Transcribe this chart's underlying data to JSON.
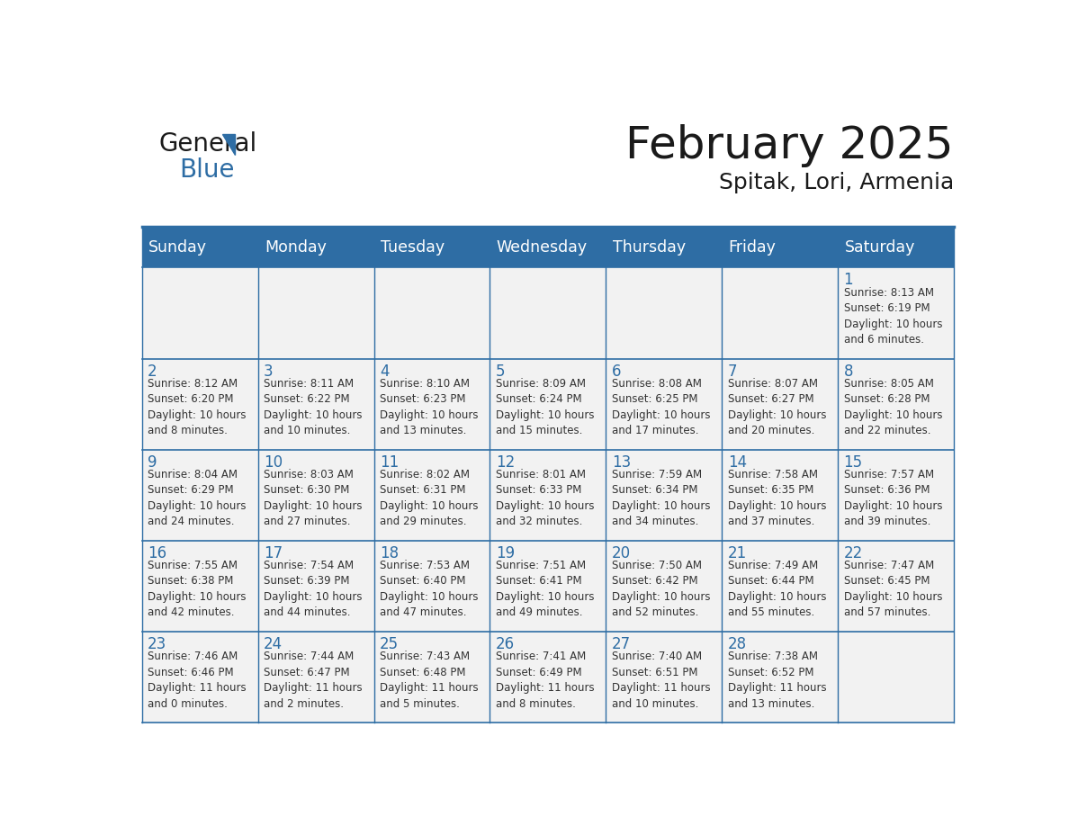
{
  "title": "February 2025",
  "subtitle": "Spitak, Lori, Armenia",
  "header_bg": "#2E6DA4",
  "header_text_color": "#FFFFFF",
  "cell_bg": "#F2F2F2",
  "border_color": "#2E6DA4",
  "day_names": [
    "Sunday",
    "Monday",
    "Tuesday",
    "Wednesday",
    "Thursday",
    "Friday",
    "Saturday"
  ],
  "title_color": "#1a1a1a",
  "subtitle_color": "#1a1a1a",
  "day_number_color": "#2E6DA4",
  "cell_text_color": "#333333",
  "weeks": [
    [
      {
        "day": "",
        "info": ""
      },
      {
        "day": "",
        "info": ""
      },
      {
        "day": "",
        "info": ""
      },
      {
        "day": "",
        "info": ""
      },
      {
        "day": "",
        "info": ""
      },
      {
        "day": "",
        "info": ""
      },
      {
        "day": "1",
        "info": "Sunrise: 8:13 AM\nSunset: 6:19 PM\nDaylight: 10 hours\nand 6 minutes."
      }
    ],
    [
      {
        "day": "2",
        "info": "Sunrise: 8:12 AM\nSunset: 6:20 PM\nDaylight: 10 hours\nand 8 minutes."
      },
      {
        "day": "3",
        "info": "Sunrise: 8:11 AM\nSunset: 6:22 PM\nDaylight: 10 hours\nand 10 minutes."
      },
      {
        "day": "4",
        "info": "Sunrise: 8:10 AM\nSunset: 6:23 PM\nDaylight: 10 hours\nand 13 minutes."
      },
      {
        "day": "5",
        "info": "Sunrise: 8:09 AM\nSunset: 6:24 PM\nDaylight: 10 hours\nand 15 minutes."
      },
      {
        "day": "6",
        "info": "Sunrise: 8:08 AM\nSunset: 6:25 PM\nDaylight: 10 hours\nand 17 minutes."
      },
      {
        "day": "7",
        "info": "Sunrise: 8:07 AM\nSunset: 6:27 PM\nDaylight: 10 hours\nand 20 minutes."
      },
      {
        "day": "8",
        "info": "Sunrise: 8:05 AM\nSunset: 6:28 PM\nDaylight: 10 hours\nand 22 minutes."
      }
    ],
    [
      {
        "day": "9",
        "info": "Sunrise: 8:04 AM\nSunset: 6:29 PM\nDaylight: 10 hours\nand 24 minutes."
      },
      {
        "day": "10",
        "info": "Sunrise: 8:03 AM\nSunset: 6:30 PM\nDaylight: 10 hours\nand 27 minutes."
      },
      {
        "day": "11",
        "info": "Sunrise: 8:02 AM\nSunset: 6:31 PM\nDaylight: 10 hours\nand 29 minutes."
      },
      {
        "day": "12",
        "info": "Sunrise: 8:01 AM\nSunset: 6:33 PM\nDaylight: 10 hours\nand 32 minutes."
      },
      {
        "day": "13",
        "info": "Sunrise: 7:59 AM\nSunset: 6:34 PM\nDaylight: 10 hours\nand 34 minutes."
      },
      {
        "day": "14",
        "info": "Sunrise: 7:58 AM\nSunset: 6:35 PM\nDaylight: 10 hours\nand 37 minutes."
      },
      {
        "day": "15",
        "info": "Sunrise: 7:57 AM\nSunset: 6:36 PM\nDaylight: 10 hours\nand 39 minutes."
      }
    ],
    [
      {
        "day": "16",
        "info": "Sunrise: 7:55 AM\nSunset: 6:38 PM\nDaylight: 10 hours\nand 42 minutes."
      },
      {
        "day": "17",
        "info": "Sunrise: 7:54 AM\nSunset: 6:39 PM\nDaylight: 10 hours\nand 44 minutes."
      },
      {
        "day": "18",
        "info": "Sunrise: 7:53 AM\nSunset: 6:40 PM\nDaylight: 10 hours\nand 47 minutes."
      },
      {
        "day": "19",
        "info": "Sunrise: 7:51 AM\nSunset: 6:41 PM\nDaylight: 10 hours\nand 49 minutes."
      },
      {
        "day": "20",
        "info": "Sunrise: 7:50 AM\nSunset: 6:42 PM\nDaylight: 10 hours\nand 52 minutes."
      },
      {
        "day": "21",
        "info": "Sunrise: 7:49 AM\nSunset: 6:44 PM\nDaylight: 10 hours\nand 55 minutes."
      },
      {
        "day": "22",
        "info": "Sunrise: 7:47 AM\nSunset: 6:45 PM\nDaylight: 10 hours\nand 57 minutes."
      }
    ],
    [
      {
        "day": "23",
        "info": "Sunrise: 7:46 AM\nSunset: 6:46 PM\nDaylight: 11 hours\nand 0 minutes."
      },
      {
        "day": "24",
        "info": "Sunrise: 7:44 AM\nSunset: 6:47 PM\nDaylight: 11 hours\nand 2 minutes."
      },
      {
        "day": "25",
        "info": "Sunrise: 7:43 AM\nSunset: 6:48 PM\nDaylight: 11 hours\nand 5 minutes."
      },
      {
        "day": "26",
        "info": "Sunrise: 7:41 AM\nSunset: 6:49 PM\nDaylight: 11 hours\nand 8 minutes."
      },
      {
        "day": "27",
        "info": "Sunrise: 7:40 AM\nSunset: 6:51 PM\nDaylight: 11 hours\nand 10 minutes."
      },
      {
        "day": "28",
        "info": "Sunrise: 7:38 AM\nSunset: 6:52 PM\nDaylight: 11 hours\nand 13 minutes."
      },
      {
        "day": "",
        "info": ""
      }
    ]
  ]
}
